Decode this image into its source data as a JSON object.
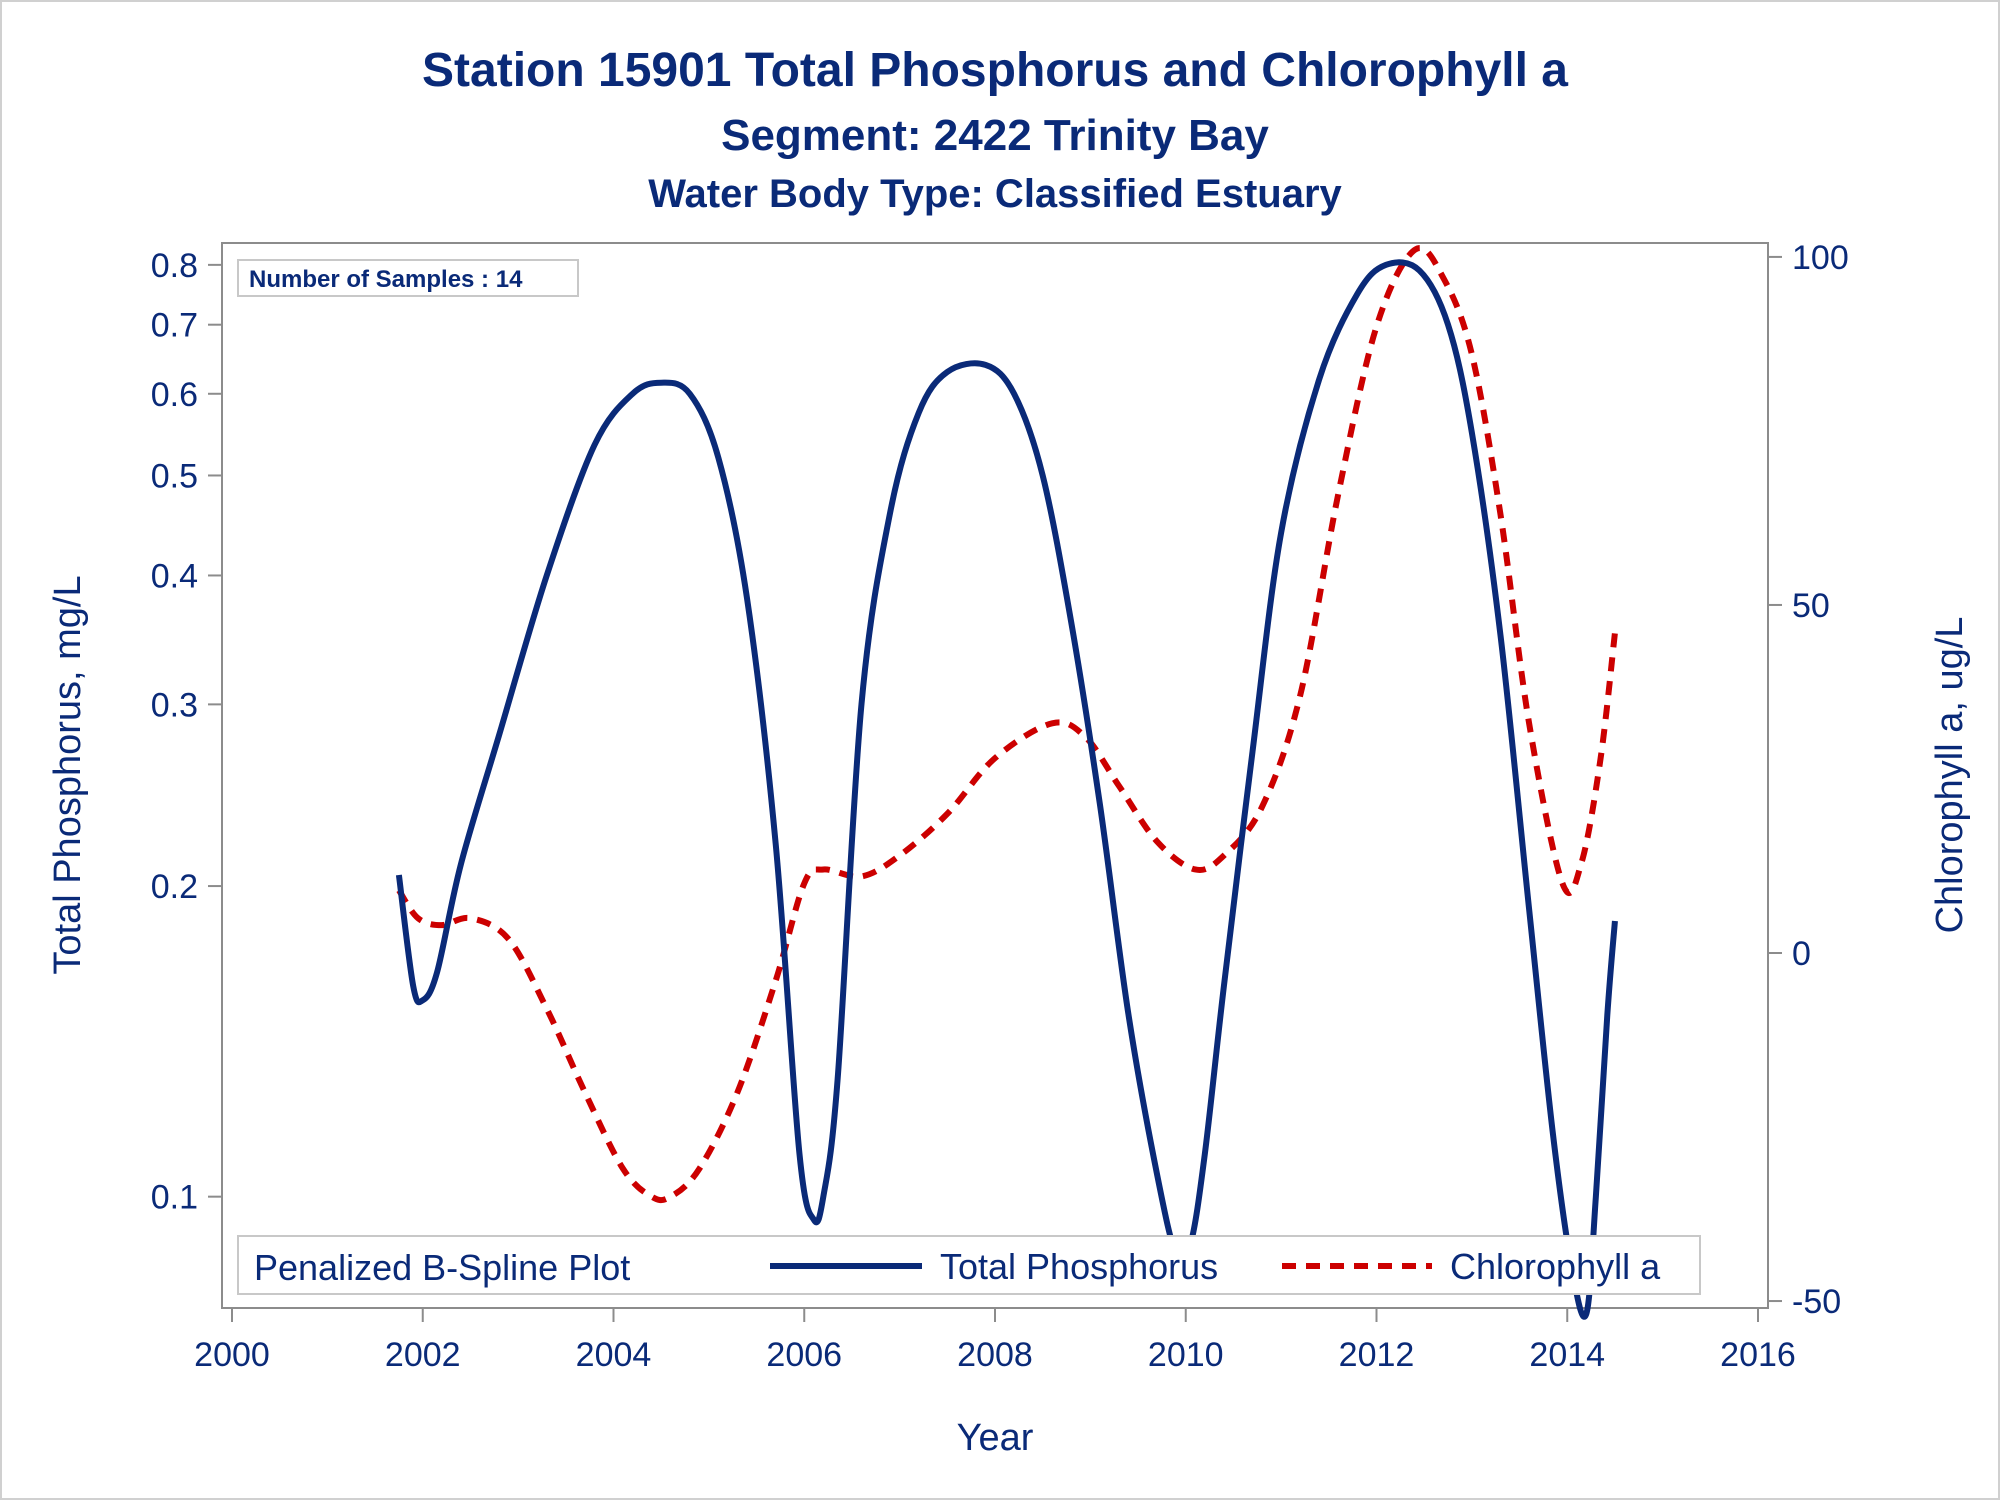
{
  "titles": {
    "main": "Station 15901  Total Phosphorus and Chlorophyll a",
    "segment": "Segment: 2422  Trinity Bay",
    "waterbody": "Water Body Type: Classified Estuary"
  },
  "inset_label": "Number of Samples : 14",
  "legend": {
    "title": "Penalized B-Spline Plot",
    "items": [
      "Total Phosphorus",
      "Chlorophyll a"
    ]
  },
  "colors": {
    "phosphorus": "#0a2a78",
    "chlorophyll": "#cc0000",
    "axis": "#8c8c8c",
    "text": "#0a2a78"
  },
  "chart_data": {
    "type": "line",
    "xlabel": "Year",
    "ylabel": "Total Phosphorus, mg/L",
    "y2label": "Chlorophyll a, ug/L",
    "xlim": [
      2000,
      2016
    ],
    "x_ticks": [
      "2000",
      "2002",
      "2004",
      "2006",
      "2008",
      "2010",
      "2012",
      "2014",
      "2016"
    ],
    "y_scale": "log",
    "ylim": [
      0.078,
      0.84
    ],
    "y_ticks": [
      "0.1",
      "0.2",
      "0.3",
      "0.4",
      "0.5",
      "0.6",
      "0.7",
      "0.8"
    ],
    "y2lim": [
      -51,
      102
    ],
    "y2_ticks": [
      "-50",
      "0",
      "50",
      "100"
    ],
    "grid": false,
    "legend_position": "bottom-inside",
    "series": [
      {
        "name": "Total Phosphorus",
        "axis": "left",
        "style": "solid",
        "x": [
          2001.75,
          2001.9,
          2002.0,
          2002.15,
          2002.4,
          2002.8,
          2003.3,
          2003.8,
          2004.2,
          2004.5,
          2004.8,
          2005.1,
          2005.4,
          2005.7,
          2005.95,
          2006.1,
          2006.2,
          2006.35,
          2006.6,
          2006.9,
          2007.2,
          2007.5,
          2007.9,
          2008.2,
          2008.5,
          2008.8,
          2009.1,
          2009.4,
          2009.7,
          2009.9,
          2010.05,
          2010.2,
          2010.4,
          2010.7,
          2011.0,
          2011.4,
          2011.8,
          2012.1,
          2012.45,
          2012.75,
          2013.0,
          2013.3,
          2013.6,
          2013.85,
          2014.05,
          2014.2,
          2014.3,
          2014.42,
          2014.5
        ],
        "values": [
          0.205,
          0.16,
          0.155,
          0.165,
          0.21,
          0.28,
          0.4,
          0.535,
          0.6,
          0.615,
          0.6,
          0.52,
          0.38,
          0.22,
          0.11,
          0.095,
          0.1,
          0.13,
          0.3,
          0.46,
          0.575,
          0.63,
          0.64,
          0.6,
          0.5,
          0.36,
          0.24,
          0.15,
          0.105,
          0.088,
          0.09,
          0.11,
          0.16,
          0.27,
          0.44,
          0.62,
          0.75,
          0.8,
          0.79,
          0.7,
          0.55,
          0.35,
          0.19,
          0.115,
          0.085,
          0.077,
          0.1,
          0.15,
          0.185
        ]
      },
      {
        "name": "Chlorophyll a",
        "axis": "right",
        "style": "dashed",
        "x": [
          2001.75,
          2001.95,
          2002.2,
          2002.5,
          2002.9,
          2003.3,
          2003.7,
          2004.1,
          2004.4,
          2004.6,
          2004.9,
          2005.3,
          2005.7,
          2006.0,
          2006.2,
          2006.6,
          2007.0,
          2007.5,
          2008.0,
          2008.6,
          2008.95,
          2009.3,
          2009.7,
          2010.1,
          2010.4,
          2010.8,
          2011.2,
          2011.6,
          2012.0,
          2012.4,
          2012.7,
          2013.0,
          2013.3,
          2013.6,
          2013.95,
          2014.15,
          2014.35,
          2014.5
        ],
        "values": [
          9,
          5,
          4,
          5,
          2,
          -8,
          -20,
          -31,
          -35,
          -35,
          -31,
          -20,
          -4,
          10,
          12,
          11,
          14,
          20,
          28,
          33,
          31,
          24,
          16,
          12,
          14,
          21,
          37,
          66,
          90,
          101,
          97,
          86,
          63,
          33,
          10,
          13,
          28,
          46
        ]
      }
    ]
  }
}
